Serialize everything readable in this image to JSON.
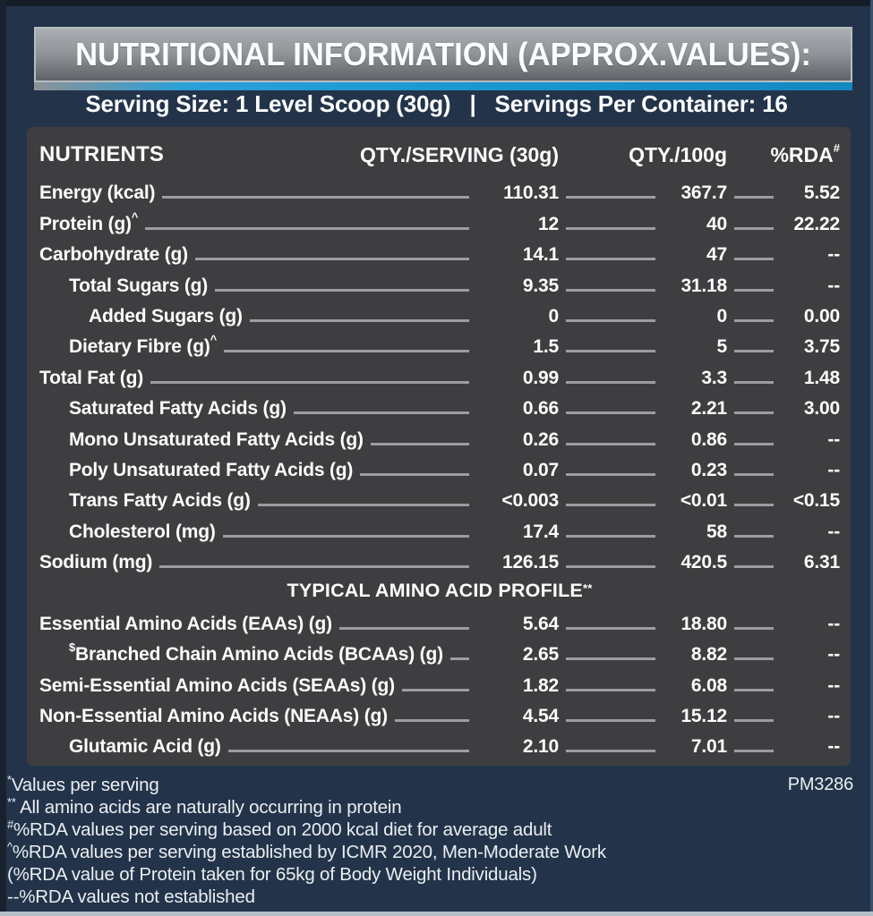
{
  "header": {
    "title": "NUTRITIONAL INFORMATION (APPROX.VALUES):",
    "serving_size": "Serving Size: 1 Level Scoop (30g)",
    "separator": "|",
    "servings_per_container": "Servings Per Container: 16"
  },
  "colors": {
    "background_navy": "#23344a",
    "panel_gray": "#3e3e40",
    "accent_blue": "#1a97d0",
    "titlebar_gray": "#8f9397",
    "leader_line": "#9b9da0",
    "text_white": "#fbfcfd"
  },
  "table": {
    "columns": {
      "nutrients": "NUTRIENTS",
      "qty_serving": "QTY./SERVING (30g)",
      "qty_100g": "QTY./100g",
      "rda": "%RDA",
      "rda_sup": "#"
    },
    "rows": [
      {
        "label": "Energy (kcal)",
        "indent": 0,
        "qty_serving": "110.31",
        "qty_100g": "367.7",
        "rda": "5.52"
      },
      {
        "label": "Protein (g)",
        "sup_suffix": "^",
        "indent": 0,
        "qty_serving": "12",
        "qty_100g": "40",
        "rda": "22.22"
      },
      {
        "label": "Carbohydrate (g)",
        "indent": 0,
        "qty_serving": "14.1",
        "qty_100g": "47",
        "rda": "--"
      },
      {
        "label": "Total Sugars (g)",
        "indent": 1,
        "qty_serving": "9.35",
        "qty_100g": "31.18",
        "rda": "--"
      },
      {
        "label": "Added Sugars (g)",
        "indent": 2,
        "qty_serving": "0",
        "qty_100g": "0",
        "rda": "0.00"
      },
      {
        "label": "Dietary Fibre (g)",
        "sup_suffix": "^",
        "indent": 1,
        "qty_serving": "1.5",
        "qty_100g": "5",
        "rda": "3.75"
      },
      {
        "label": "Total Fat (g)",
        "indent": 0,
        "qty_serving": "0.99",
        "qty_100g": "3.3",
        "rda": "1.48"
      },
      {
        "label": "Saturated Fatty Acids (g)",
        "indent": 1,
        "qty_serving": "0.66",
        "qty_100g": "2.21",
        "rda": "3.00"
      },
      {
        "label": "Mono Unsaturated Fatty Acids (g)",
        "indent": 1,
        "qty_serving": "0.26",
        "qty_100g": "0.86",
        "rda": "--"
      },
      {
        "label": "Poly Unsaturated Fatty Acids (g)",
        "indent": 1,
        "qty_serving": "0.07",
        "qty_100g": "0.23",
        "rda": "--"
      },
      {
        "label": "Trans Fatty Acids (g)",
        "indent": 1,
        "qty_serving": "<0.003",
        "qty_100g": "<0.01",
        "rda": "<0.15"
      },
      {
        "label": "Cholesterol (mg)",
        "indent": 1,
        "qty_serving": "17.4",
        "qty_100g": "58",
        "rda": "--"
      },
      {
        "label": "Sodium (mg)",
        "indent": 0,
        "qty_serving": "126.15",
        "qty_100g": "420.5",
        "rda": "6.31"
      },
      {
        "type": "section",
        "label": "TYPICAL AMINO ACID PROFILE",
        "sup_suffix": "**"
      },
      {
        "label": "Essential Amino Acids (EAAs) (g)",
        "indent": 0,
        "qty_serving": "5.64",
        "qty_100g": "18.80",
        "rda": "--"
      },
      {
        "label": "Branched Chain Amino Acids (BCAAs) (g)",
        "sup_prefix": "$",
        "indent": 1,
        "qty_serving": "2.65",
        "qty_100g": "8.82",
        "rda": "--"
      },
      {
        "label": "Semi-Essential Amino Acids (SEAAs) (g)",
        "indent": 0,
        "qty_serving": "1.82",
        "qty_100g": "6.08",
        "rda": "--"
      },
      {
        "label": "Non-Essential Amino Acids (NEAAs) (g)",
        "indent": 0,
        "qty_serving": "4.54",
        "qty_100g": "15.12",
        "rda": "--"
      },
      {
        "label": "Glutamic Acid (g)",
        "indent": 1,
        "qty_serving": "2.10",
        "qty_100g": "7.01",
        "rda": "--"
      }
    ]
  },
  "footer": {
    "code": "PM3286",
    "notes": [
      {
        "sup": "*",
        "text": "Values per serving"
      },
      {
        "sup": "**",
        "text": " All amino acids are naturally occurring in protein"
      },
      {
        "sup": "#",
        "text": "%RDA values per serving based on 2000 kcal diet for average adult"
      },
      {
        "sup": "^",
        "text": "%RDA values per serving established by ICMR 2020, Men-Moderate Work"
      },
      {
        "sup": "",
        "text": "(%RDA value of Protein taken for 65kg of Body Weight Individuals)"
      },
      {
        "sup": "",
        "text": "--%RDA values not established"
      }
    ]
  }
}
